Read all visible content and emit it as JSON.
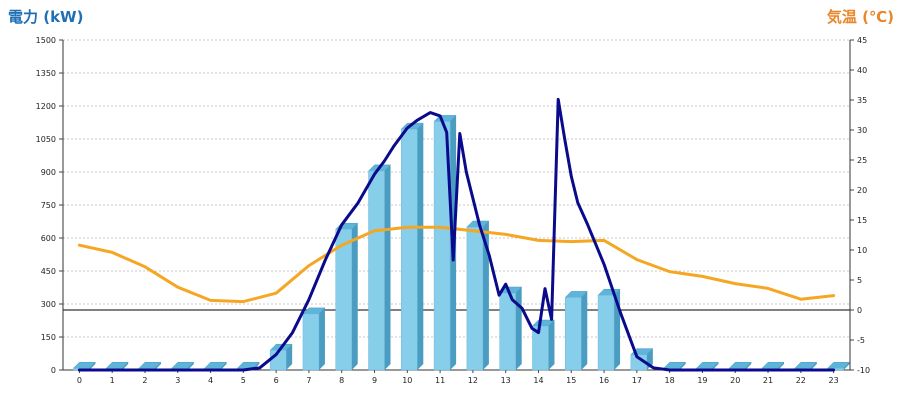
{
  "chart_data": {
    "type": "bar",
    "categories": [
      "0",
      "1",
      "2",
      "3",
      "4",
      "5",
      "6",
      "7",
      "8",
      "9",
      "10",
      "11",
      "12",
      "13",
      "14",
      "15",
      "16",
      "17",
      "18",
      "19",
      "20",
      "21",
      "22",
      "23"
    ],
    "y_left": {
      "label": "電力 (kW)",
      "ylim": [
        0,
        1500
      ],
      "ticks": [
        0,
        150,
        300,
        450,
        600,
        750,
        900,
        1050,
        1200,
        1350,
        1500
      ]
    },
    "y_right": {
      "label": "気温 (℃)",
      "ylim": [
        -10,
        45
      ],
      "ticks": [
        -10,
        -5,
        0,
        5,
        10,
        15,
        20,
        25,
        30,
        35,
        40,
        45
      ]
    },
    "grid": true,
    "series": [
      {
        "type": "bar",
        "axis": "left",
        "color": "#87ceeb",
        "values": [
          8,
          8,
          8,
          8,
          8,
          8,
          90,
          255,
          640,
          905,
          1095,
          1130,
          650,
          350,
          200,
          330,
          340,
          70,
          8,
          8,
          8,
          8,
          8,
          8
        ]
      },
      {
        "type": "line",
        "axis": "left",
        "color": "#0a0a8c",
        "x": [
          0,
          1,
          2,
          3,
          4,
          5,
          5.5,
          6,
          6.5,
          7,
          7.5,
          8,
          8.5,
          9,
          9.3,
          9.6,
          10,
          10.3,
          10.7,
          11,
          11.2,
          11.4,
          11.6,
          11.8,
          12,
          12.2,
          12.5,
          12.8,
          13,
          13.2,
          13.5,
          13.8,
          14,
          14.2,
          14.4,
          14.6,
          14.8,
          15,
          15.2,
          15.5,
          16,
          16.5,
          17,
          17.5,
          18,
          19,
          20,
          21,
          22,
          23
        ],
        "values": [
          0,
          0,
          0,
          0,
          0,
          0,
          10,
          70,
          170,
          320,
          500,
          660,
          760,
          890,
          950,
          1020,
          1100,
          1135,
          1170,
          1155,
          1080,
          500,
          1075,
          900,
          780,
          660,
          520,
          340,
          390,
          320,
          280,
          190,
          170,
          370,
          230,
          1230,
          1050,
          880,
          760,
          660,
          480,
          260,
          60,
          10,
          0,
          0,
          0,
          0,
          0,
          0
        ]
      },
      {
        "type": "line",
        "axis": "right",
        "color": "#f5a623",
        "x": [
          0,
          1,
          2,
          3,
          4,
          5,
          6,
          7,
          8,
          9,
          10,
          11,
          12,
          13,
          14,
          15,
          16,
          17,
          18,
          19,
          20,
          21,
          22,
          23
        ],
        "values": [
          10.8,
          9.6,
          7.2,
          3.8,
          1.6,
          1.4,
          2.8,
          7.4,
          10.8,
          13.2,
          13.8,
          13.8,
          13.2,
          12.6,
          11.6,
          11.4,
          11.6,
          8.4,
          6.4,
          5.6,
          4.4,
          3.6,
          1.8,
          2.4
        ]
      }
    ]
  }
}
